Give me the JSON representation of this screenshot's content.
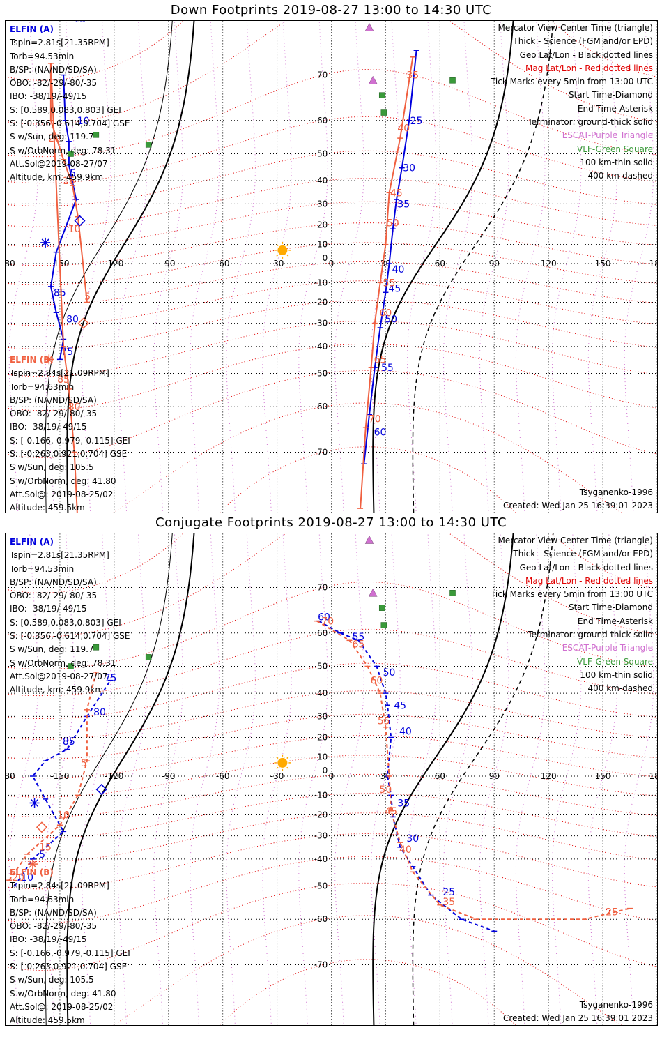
{
  "panels": [
    {
      "title": "Down Footprints 2019-08-27 13:00 to 14:30 UTC",
      "satA": {
        "name": "ELFIN (A)",
        "lines": [
          "Tspin=2.81s[21.35RPM]",
          "Torb=94.53min",
          "B/SP: (NA/ND/SD/SA)",
          "OBO: -82/-29/-80/-35",
          "IBO: -38/19/-49/15",
          "S: [0.589,0.083,0.803] GEI",
          "S: [-0.356,-0.614,0.704] GSE",
          "S w/Sun, deg: 119.7",
          "S w/OrbNorm, deg: 78.31",
          "Att.Sol@2019-08-27/07",
          "Altitude, km: 459.9km"
        ]
      },
      "satB": {
        "name": "ELFIN (B)",
        "lines": [
          "Tspin=2.84s[21.09RPM]",
          "Torb=94.63min",
          "B/SP: (NA/ND/SD/SA)",
          "OBO: -82/-29/-80/-35",
          "IBO: -38/19/-49/15",
          "S: [-0.166,-0.979,-0.115] GEI",
          "S: [-0.263,0.921,0.704] GSE",
          "S w/Sun, deg: 105.5",
          "S w/OrbNorm, deg: 41.80",
          "Att.Sol@: 2019-08-25/02",
          "Altitude: 459.5km"
        ]
      },
      "legend": [
        "Mercator View Center Time (triangle)",
        "Thick - Science (FGM and/or EPD)",
        "Geo Lat/Lon - Black dotted lines",
        "Mag Lat/Lon - Red dotted lines",
        "Tick Marks every 5min from 13:00 UTC",
        "Start Time-Diamond",
        "End Time-Asterisk",
        "Terminator: ground-thick solid",
        "ESCAT-Purple Triangle",
        "VLF-Green Square",
        "100 km-thin solid",
        "400 km-dashed"
      ],
      "model": "Tsyganenko-1996",
      "created": "Created: Wed Jan 25 16:39:01 2023"
    },
    {
      "title": "Conjugate Footprints 2019-08-27 13:00 to 14:30 UTC",
      "satA": {
        "name": "ELFIN (A)",
        "lines": [
          "Tspin=2.81s[21.35RPM]",
          "Torb=94.53min",
          "B/SP: (NA/ND/SD/SA)",
          "OBO: -82/-29/-80/-35",
          "IBO: -38/19/-49/15",
          "S: [0.589,0.083,0.803] GEI",
          "S: [-0.356,-0.614,0.704] GSE",
          "S w/Sun, deg: 119.7",
          "S w/OrbNorm, deg: 78.31",
          "Att.Sol@2019-08-27/07",
          "Altitude, km: 459.9km"
        ]
      },
      "satB": {
        "name": "ELFIN (B)",
        "lines": [
          "Tspin=2.84s[21.09RPM]",
          "Torb=94.63min",
          "B/SP: (NA/ND/SD/SA)",
          "OBO: -82/-29/-80/-35",
          "IBO: -38/19/-49/15",
          "S: [-0.166,-0.979,-0.115] GEI",
          "S: [-0.263,0.921,0.704] GSE",
          "S w/Sun, deg: 105.5",
          "S w/OrbNorm, deg: 41.80",
          "Att.Sol@: 2019-08-25/02",
          "Altitude: 459.5km"
        ]
      },
      "legend": [
        "Mercator View Center Time (triangle)",
        "Thick - Science (FGM and/or EPD)",
        "Geo Lat/Lon - Black dotted lines",
        "Mag Lat/Lon - Red dotted lines",
        "Tick Marks every 5min from 13:00 UTC",
        "Start Time-Diamond",
        "End Time-Asterisk",
        "Terminator: ground-thick solid",
        "ESCAT-Purple Triangle",
        "VLF-Green Square",
        "100 km-thin solid",
        "400 km-dashed"
      ],
      "model": "Tsyganenko-1996",
      "created": "Created: Wed Jan 25 16:39:01 2023"
    }
  ],
  "colors": {
    "elfin_a": "#0000dd",
    "elfin_b": "#f06040",
    "mag_grid": "#e00000",
    "geo_grid": "#000000",
    "escat": "#d070d0",
    "vlf": "#3a9a3a",
    "sun": "#ffaa00"
  },
  "chart_data": [
    {
      "type": "scatter",
      "title": "Down Footprints 2019-08-27 13:00 to 14:30 UTC",
      "projection": "mercator",
      "xlabel": "",
      "ylabel": "",
      "xlim": [
        -180,
        180
      ],
      "ylim": [
        -80,
        80
      ],
      "x_ticks": [
        -180,
        -150,
        -120,
        -90,
        -60,
        -30,
        0,
        30,
        60,
        90,
        120,
        150,
        180
      ],
      "y_ticks": [
        -70,
        -60,
        -50,
        -40,
        -30,
        -20,
        -10,
        0,
        10,
        20,
        30,
        40,
        50,
        60,
        70
      ],
      "grid": true,
      "series": [
        {
          "name": "ELFIN (A)",
          "color": "#0000dd",
          "points": [
            [
              -150,
              -45
            ],
            [
              -148,
              -37
            ],
            [
              -152,
              -25
            ],
            [
              -155,
              -12
            ],
            [
              -152,
              6
            ],
            [
              -141,
              32
            ],
            [
              -145,
              46
            ],
            [
              -145,
              54
            ],
            [
              -147,
              60
            ],
            [
              -148,
              70
            ],
            [
              18,
              -72
            ],
            [
              21,
              -62
            ],
            [
              24,
              -48
            ],
            [
              27,
              -32
            ],
            [
              30,
              -15
            ],
            [
              32,
              0
            ],
            [
              34,
              18
            ],
            [
              36,
              32
            ],
            [
              39,
              45
            ],
            [
              43,
              60
            ],
            [
              47,
              74
            ]
          ],
          "tick_labels": [
            {
              "label": "5",
              "lon": -146,
              "lat": 43
            },
            {
              "label": "10",
              "lon": -142,
              "lat": 60
            },
            {
              "label": "15",
              "lon": -144,
              "lat": 78
            },
            {
              "label": "25",
              "lon": 42,
              "lat": 60
            },
            {
              "label": "30",
              "lon": 38,
              "lat": 45
            },
            {
              "label": "35",
              "lon": 35,
              "lat": 30
            },
            {
              "label": "40",
              "lon": 32,
              "lat": -3
            },
            {
              "label": "45",
              "lon": 30,
              "lat": -13
            },
            {
              "label": "50",
              "lon": 28,
              "lat": -28
            },
            {
              "label": "55",
              "lon": 26,
              "lat": -48
            },
            {
              "label": "60",
              "lon": 22,
              "lat": -66
            },
            {
              "label": "75",
              "lon": -151,
              "lat": -42
            },
            {
              "label": "80",
              "lon": -148,
              "lat": -28
            },
            {
              "label": "85",
              "lon": -155,
              "lat": -15
            }
          ]
        },
        {
          "name": "ELFIN (B)",
          "color": "#f06040",
          "points": [
            [
              -140,
              -80
            ],
            [
              -142,
              -70
            ],
            [
              -145,
              -55
            ],
            [
              -148,
              -40
            ],
            [
              -155,
              72
            ],
            [
              -155,
              60
            ],
            [
              -148,
              48
            ],
            [
              -143,
              38
            ],
            [
              -140,
              24
            ],
            [
              -135,
              -20
            ],
            [
              16,
              -78
            ],
            [
              19,
              -65
            ],
            [
              22,
              -48
            ],
            [
              24,
              -30
            ],
            [
              27,
              -10
            ],
            [
              30,
              10
            ],
            [
              32,
              35
            ],
            [
              38,
              55
            ],
            [
              45,
              73
            ]
          ],
          "tick_labels": [
            {
              "label": "20",
              "lon": -158,
              "lat": 55
            },
            {
              "label": "15",
              "lon": -150,
              "lat": 40
            },
            {
              "label": "10",
              "lon": -147,
              "lat": 18
            },
            {
              "label": "5",
              "lon": -138,
              "lat": -17
            },
            {
              "label": "35",
              "lon": 40,
              "lat": 70
            },
            {
              "label": "40",
              "lon": 35,
              "lat": 58
            },
            {
              "label": "45",
              "lon": 31,
              "lat": 35
            },
            {
              "label": "50",
              "lon": 29,
              "lat": 21
            },
            {
              "label": "55",
              "lon": 27,
              "lat": -10
            },
            {
              "label": "60",
              "lon": 25,
              "lat": -25
            },
            {
              "label": "65",
              "lon": 22,
              "lat": -45
            },
            {
              "label": "70",
              "lon": 19,
              "lat": -63
            },
            {
              "label": "80",
              "lon": -147,
              "lat": -60
            },
            {
              "label": "85",
              "lon": -153,
              "lat": -52
            }
          ]
        },
        {
          "name": "Start Time-Diamond",
          "points": [
            [
              -139,
              22
            ],
            [
              -137,
              -30
            ]
          ]
        },
        {
          "name": "End Time-Asterisk",
          "points": [
            [
              -158,
              11
            ],
            [
              -156,
              -45
            ]
          ]
        },
        {
          "name": "ESCAT-Purple Triangle",
          "points": [
            [
              21,
              77
            ],
            [
              23,
              69
            ]
          ]
        },
        {
          "name": "VLF-Green Square",
          "points": [
            [
              28,
              66
            ],
            [
              29,
              62
            ],
            [
              67,
              69
            ],
            [
              -130,
              56
            ],
            [
              -101,
              53
            ],
            [
              -144,
              50
            ]
          ]
        }
      ]
    },
    {
      "type": "scatter",
      "title": "Conjugate Footprints 2019-08-27 13:00 to 14:30 UTC",
      "projection": "mercator",
      "xlabel": "",
      "ylabel": "",
      "xlim": [
        -180,
        180
      ],
      "ylim": [
        -80,
        80
      ],
      "x_ticks": [
        -180,
        -150,
        -120,
        -90,
        -60,
        -30,
        0,
        30,
        60,
        90,
        120,
        150,
        180
      ],
      "y_ticks": [
        -70,
        -60,
        -50,
        -40,
        -30,
        -20,
        -10,
        0,
        10,
        20,
        30,
        40,
        50,
        60,
        70
      ],
      "grid": true,
      "series": [
        {
          "name": "ELFIN (A)",
          "color": "#0000dd",
          "points": [
            [
              -175,
              -50
            ],
            [
              -165,
              -40
            ],
            [
              -148,
              -28
            ],
            [
              -158,
              -12
            ],
            [
              -165,
              0
            ],
            [
              -158,
              8
            ],
            [
              -146,
              14
            ],
            [
              -135,
              30
            ],
            [
              -122,
              45
            ],
            [
              -7,
              63
            ],
            [
              5,
              60
            ],
            [
              15,
              58
            ],
            [
              25,
              50
            ],
            [
              30,
              40
            ],
            [
              31,
              35
            ],
            [
              33,
              20
            ],
            [
              31,
              0
            ],
            [
              33,
              -10
            ],
            [
              34,
              -21
            ],
            [
              38,
              -35
            ],
            [
              45,
              -43
            ],
            [
              55,
              -53
            ],
            [
              72,
              -60
            ],
            [
              90,
              -63
            ]
          ],
          "tick_labels": [
            {
              "label": "5",
              "lon": -163,
              "lat": -38
            },
            {
              "label": "10",
              "lon": -173,
              "lat": -47
            },
            {
              "label": "60",
              "lon": -9,
              "lat": 64
            },
            {
              "label": "55",
              "lon": 10,
              "lat": 59
            },
            {
              "label": "50",
              "lon": 27,
              "lat": 48
            },
            {
              "label": "45",
              "lon": 33,
              "lat": 35
            },
            {
              "label": "40",
              "lon": 36,
              "lat": 23
            },
            {
              "label": "35",
              "lon": 35,
              "lat": -14
            },
            {
              "label": "30",
              "lon": 40,
              "lat": -31
            },
            {
              "label": "25",
              "lon": 60,
              "lat": -52
            },
            {
              "label": "75",
              "lon": -127,
              "lat": 46
            },
            {
              "label": "80",
              "lon": -133,
              "lat": 32
            },
            {
              "label": "85",
              "lon": -150,
              "lat": 18
            }
          ]
        },
        {
          "name": "ELFIN (B)",
          "color": "#f06040",
          "points": [
            [
              -178,
              -48
            ],
            [
              -168,
              -38
            ],
            [
              -150,
              -25
            ],
            [
              -140,
              -10
            ],
            [
              -135,
              8
            ],
            [
              -135,
              33
            ],
            [
              -130,
              48
            ],
            [
              -8,
              63
            ],
            [
              10,
              58
            ],
            [
              20,
              50
            ],
            [
              27,
              40
            ],
            [
              30,
              25
            ],
            [
              32,
              0
            ],
            [
              33,
              -18
            ],
            [
              38,
              -33
            ],
            [
              45,
              -45
            ],
            [
              60,
              -56
            ],
            [
              80,
              -60
            ],
            [
              140,
              -60
            ],
            [
              165,
              -57
            ]
          ],
          "tick_labels": [
            {
              "label": "20",
              "lon": -178,
              "lat": -47
            },
            {
              "label": "15",
              "lon": -163,
              "lat": -35
            },
            {
              "label": "10",
              "lon": -153,
              "lat": -20
            },
            {
              "label": "5",
              "lon": -140,
              "lat": 7
            },
            {
              "label": "70",
              "lon": -7,
              "lat": 63
            },
            {
              "label": "65",
              "lon": 10,
              "lat": 57
            },
            {
              "label": "60",
              "lon": 20,
              "lat": 45
            },
            {
              "label": "55",
              "lon": 24,
              "lat": 28
            },
            {
              "label": "50",
              "lon": 25,
              "lat": -7
            },
            {
              "label": "45",
              "lon": 28,
              "lat": -18
            },
            {
              "label": "40",
              "lon": 36,
              "lat": -36
            },
            {
              "label": "35",
              "lon": 60,
              "lat": -55
            },
            {
              "label": "25",
              "lon": 150,
              "lat": -58
            }
          ]
        },
        {
          "name": "Start Time-Diamond",
          "points": [
            [
              -127,
              -7
            ],
            [
              -160,
              -26
            ]
          ]
        },
        {
          "name": "End Time-Asterisk",
          "points": [
            [
              -164,
              -14
            ],
            [
              -165,
              -42
            ]
          ]
        },
        {
          "name": "ESCAT-Purple Triangle",
          "points": [
            [
              21,
              77
            ],
            [
              23,
              69
            ]
          ]
        },
        {
          "name": "VLF-Green Square",
          "points": [
            [
              28,
              66
            ],
            [
              29,
              62
            ],
            [
              67,
              69
            ],
            [
              -130,
              56
            ],
            [
              -101,
              53
            ],
            [
              -144,
              50
            ]
          ]
        }
      ]
    }
  ]
}
